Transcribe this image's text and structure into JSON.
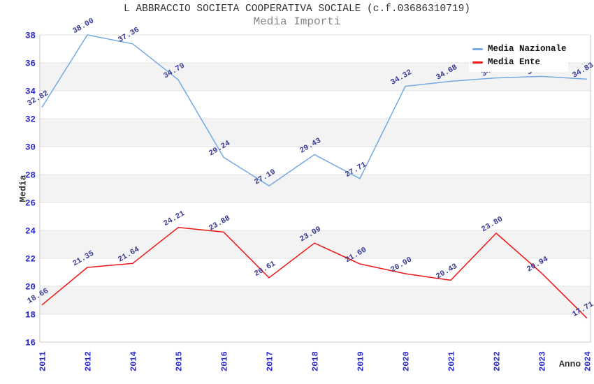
{
  "header": {
    "title": "L ABBRACCIO SOCIETA COOPERATIVA SOCIALE (c.f.03686310719)",
    "subtitle": "Media Importi"
  },
  "legend": {
    "items": [
      {
        "label": "Media Nazionale",
        "color": "#74a9e2"
      },
      {
        "label": "Media Ente",
        "color": "#ee1515"
      }
    ]
  },
  "chart_data": {
    "type": "line",
    "title": "L ABBRACCIO SOCIETA COOPERATIVA SOCIALE (c.f.03686310719)",
    "subtitle": "Media Importi",
    "xlabel": "Anno",
    "ylabel": "Media",
    "ylim": [
      16,
      38
    ],
    "ytick_step": 2,
    "grid": "horizontal-alternating-bands",
    "legend_position": "top-right",
    "categories": [
      "2011",
      "2012",
      "2014",
      "2015",
      "2016",
      "2017",
      "2018",
      "2019",
      "2020",
      "2021",
      "2022",
      "2023",
      "2024"
    ],
    "series": [
      {
        "name": "Media Nazionale",
        "color": "#74a9e2",
        "values": [
          32.82,
          38.0,
          37.36,
          34.79,
          29.24,
          27.19,
          29.43,
          27.71,
          34.32,
          34.68,
          34.92,
          35.03,
          34.83
        ],
        "labels": [
          "32.82",
          "38.00",
          "37.36",
          "34.79",
          "29.24",
          "27.19",
          "29.43",
          "27.71",
          "34.32",
          "34.68",
          "34.92",
          "35.03",
          "34.83"
        ]
      },
      {
        "name": "Media Ente",
        "color": "#ee1515",
        "values": [
          18.66,
          21.35,
          21.64,
          24.21,
          23.88,
          20.61,
          23.09,
          21.6,
          20.9,
          20.43,
          23.8,
          20.94,
          17.71
        ],
        "labels": [
          "18.66",
          "21.35",
          "21.64",
          "24.21",
          "23.88",
          "20.61",
          "23.09",
          "21.60",
          "20.90",
          "20.43",
          "23.80",
          "20.94",
          "17.71"
        ]
      }
    ]
  },
  "colors": {
    "band": "#f3f3f3",
    "gridline": "#e1e1e1",
    "border": "#c8c8c8",
    "tick_label": "#2828cf",
    "point_label": "#3b3b94",
    "axis_title": "#333333",
    "subtitle_text": "#878787",
    "background": "#ffffff"
  }
}
